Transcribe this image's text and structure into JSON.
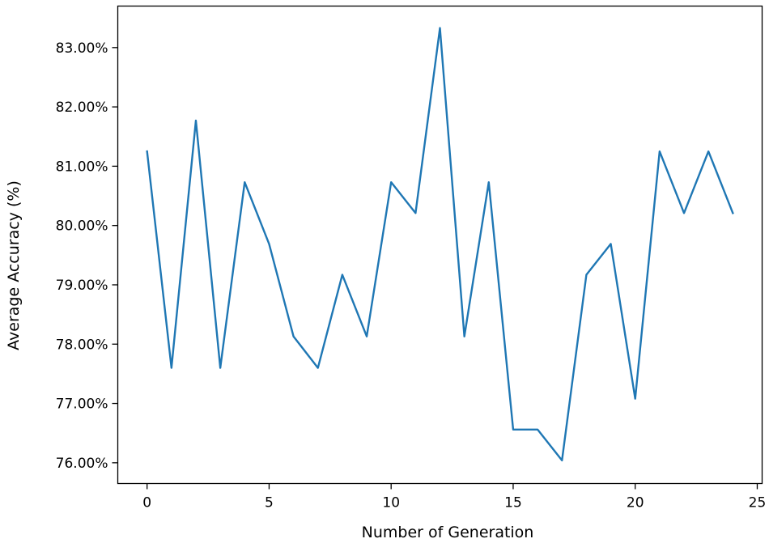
{
  "chart_data": {
    "type": "line",
    "title": "",
    "xlabel": "Number of Generation",
    "ylabel": "Average Accuracy (%)",
    "xlim": [
      -1.2,
      25.2
    ],
    "ylim": [
      75.65,
      83.7
    ],
    "x_ticks": [
      0,
      5,
      10,
      15,
      20,
      25
    ],
    "x_tick_labels": [
      "0",
      "5",
      "10",
      "15",
      "20",
      "25"
    ],
    "y_ticks": [
      76,
      77,
      78,
      79,
      80,
      81,
      82,
      83
    ],
    "y_tick_labels": [
      "76.00%",
      "77.00%",
      "78.00%",
      "79.00%",
      "80.00%",
      "81.00%",
      "82.00%",
      "83.00%"
    ],
    "grid": false,
    "legend": "none",
    "series": [
      {
        "color": "#1f77b4",
        "x": [
          0,
          1,
          2,
          3,
          4,
          5,
          6,
          7,
          8,
          9,
          10,
          11,
          12,
          13,
          14,
          15,
          16,
          17,
          18,
          19,
          20,
          21,
          22,
          23,
          24
        ],
        "values": [
          81.25,
          77.6,
          81.77,
          77.6,
          80.73,
          79.69,
          78.13,
          77.6,
          79.17,
          78.13,
          80.73,
          80.21,
          83.33,
          78.13,
          80.73,
          76.56,
          76.56,
          76.04,
          79.17,
          79.69,
          77.08,
          81.25,
          80.21,
          81.25,
          80.21
        ]
      }
    ]
  }
}
